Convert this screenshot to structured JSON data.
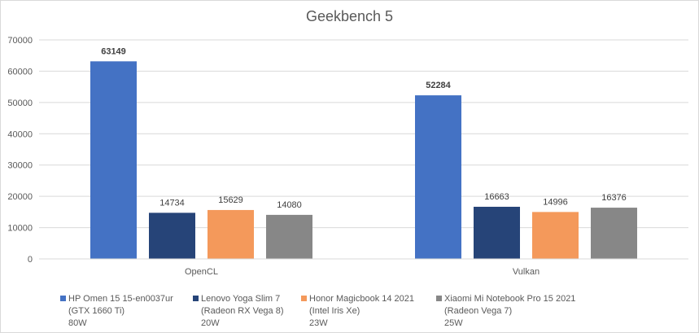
{
  "chart_data": {
    "type": "bar",
    "title": "Geekbench 5",
    "categories": [
      "OpenCL",
      "Vulkan"
    ],
    "series": [
      {
        "name": "HP Omen 15 15-en0037ur\n(GTX 1660 Ti)\n80W",
        "color": "#4472C4",
        "values": [
          63149,
          52284
        ]
      },
      {
        "name": "Lenovo Yoga Slim 7\n(Radeon RX Vega 8)\n20W",
        "color": "#264478",
        "values": [
          14734,
          16663
        ]
      },
      {
        "name": "Honor Magicbook 14 2021\n(Intel Iris Xe)\n23W",
        "color": "#F4995B",
        "values": [
          15629,
          14996
        ]
      },
      {
        "name": "Xiaomi Mi Notebook Pro 15 2021\n(Radeon Vega 7)\n25W",
        "color": "#878787",
        "values": [
          14080,
          16376
        ]
      }
    ],
    "ylim": [
      0,
      70000
    ],
    "yticks": [
      0,
      10000,
      20000,
      30000,
      40000,
      50000,
      60000,
      70000
    ],
    "grid": true,
    "legend_position": "bottom",
    "data_labels": true
  }
}
